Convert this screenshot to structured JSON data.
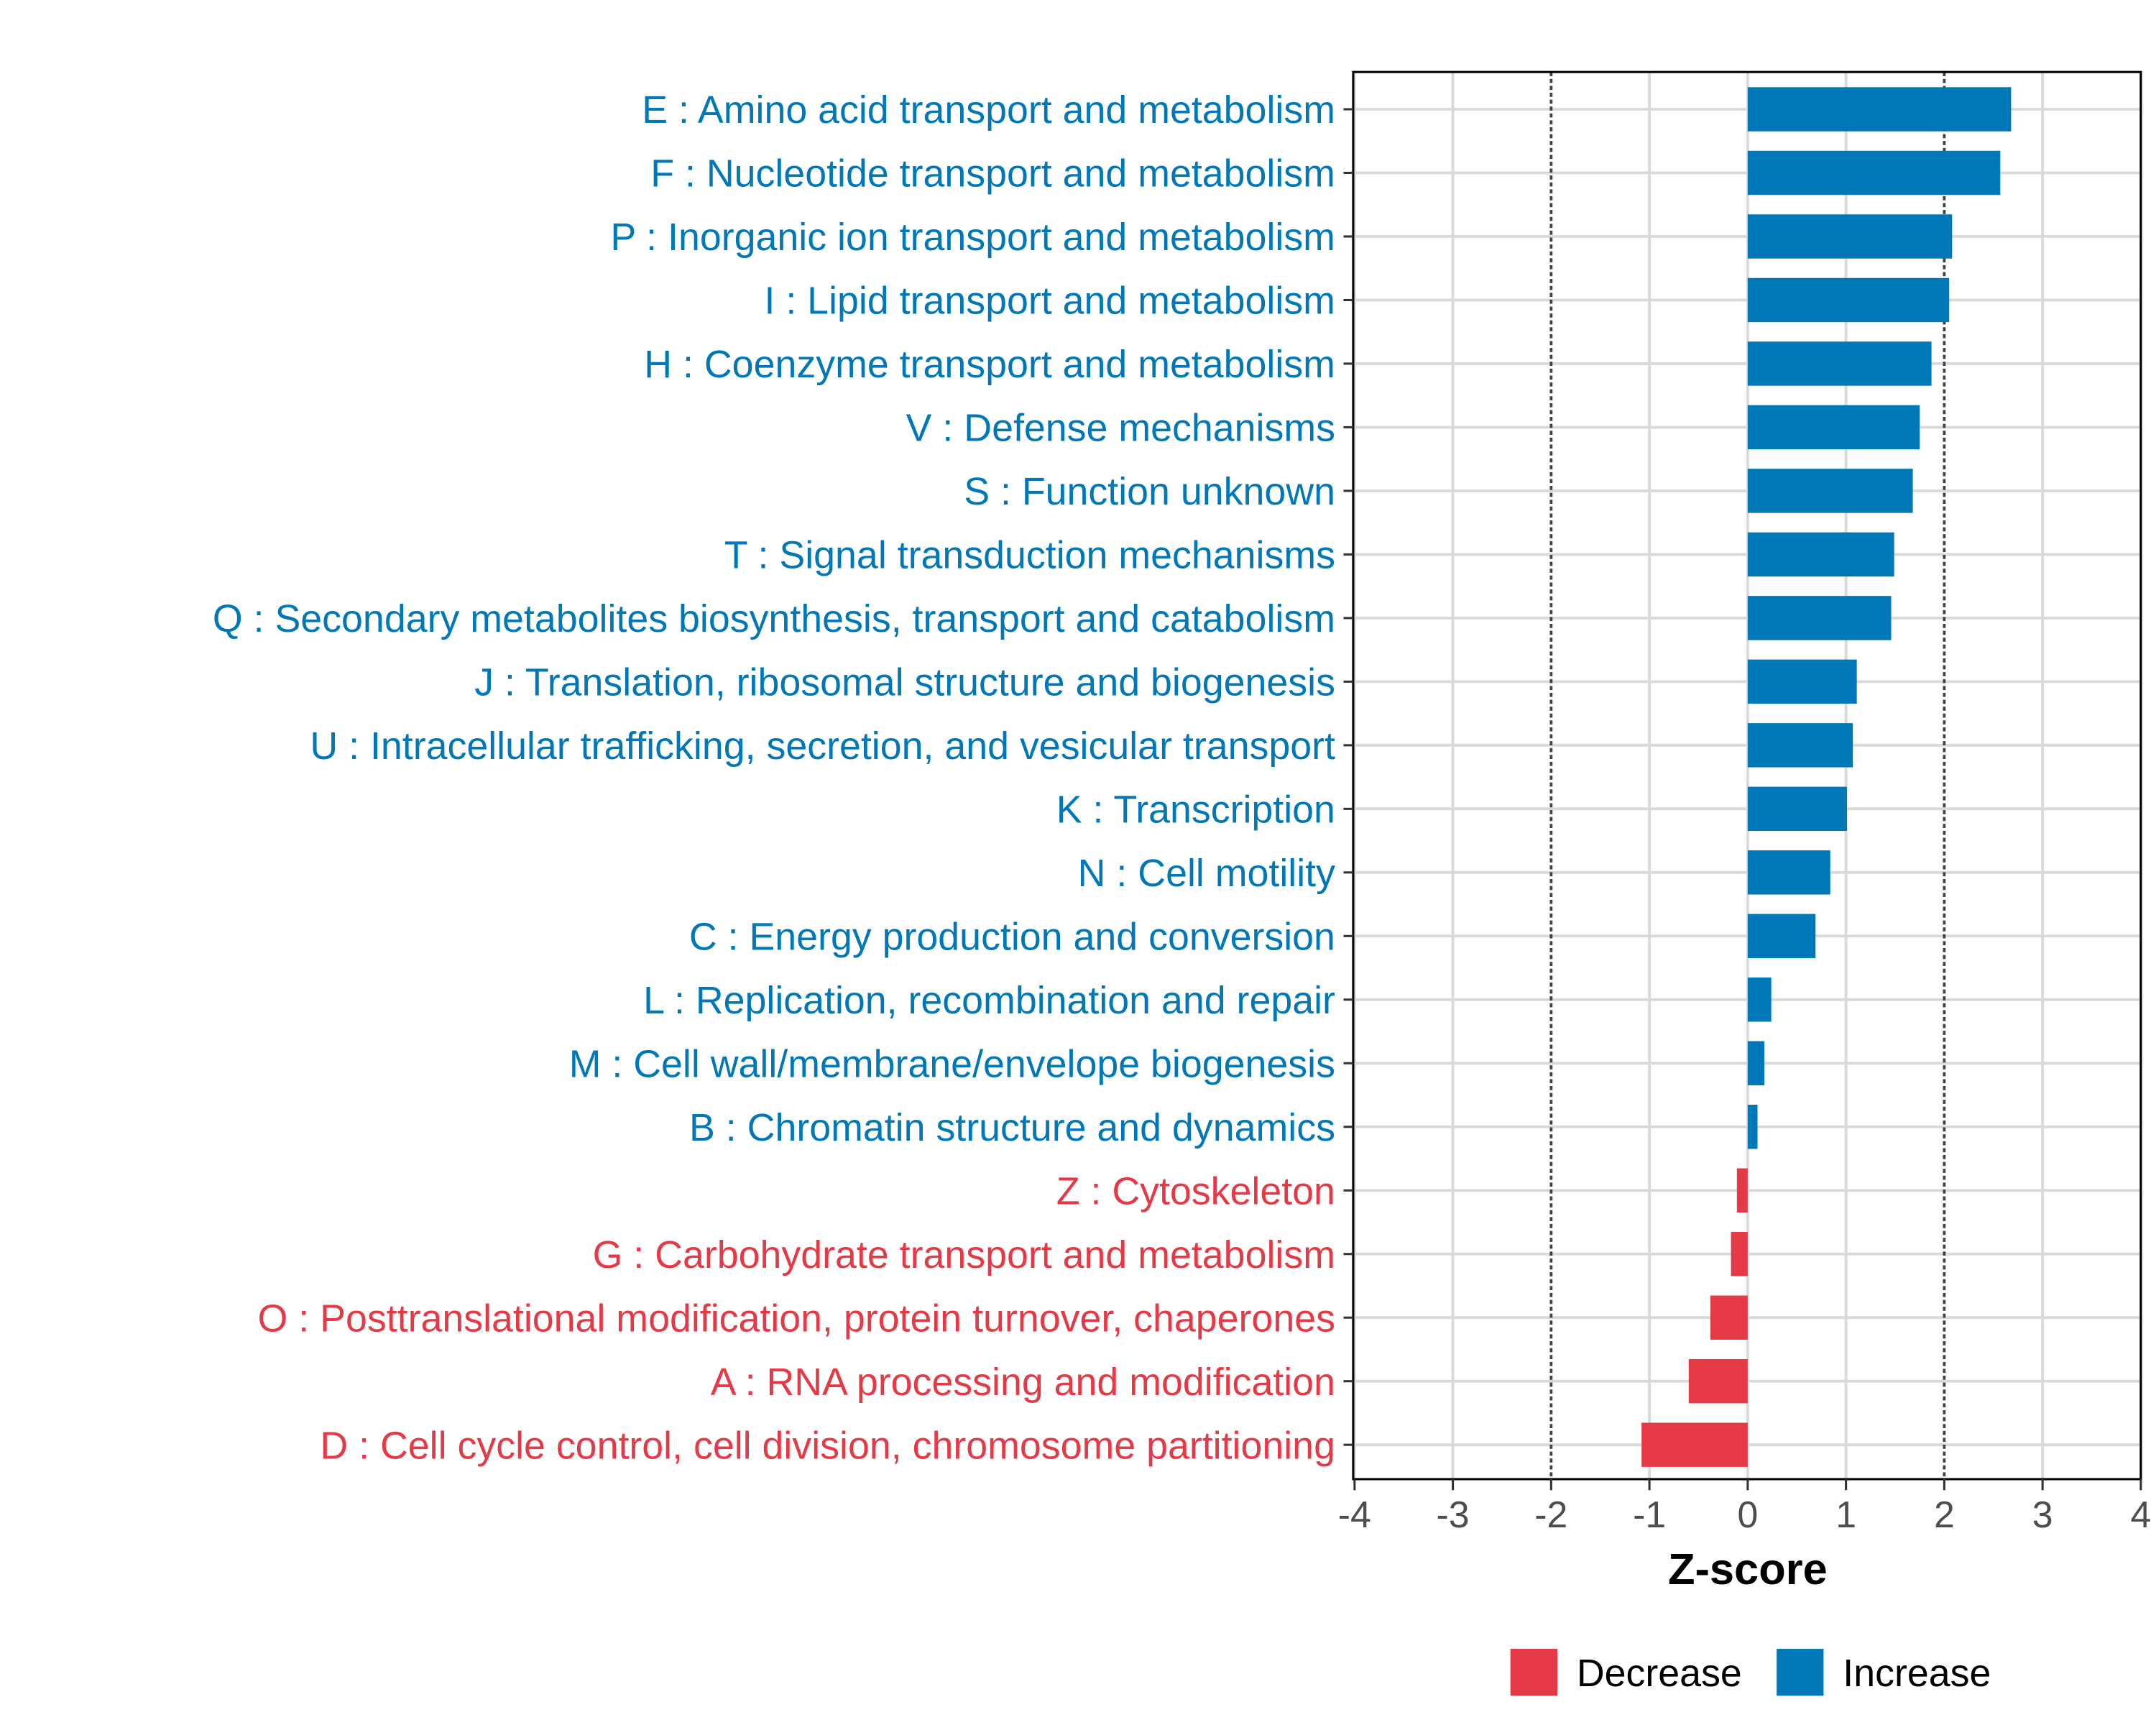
{
  "chart_data": {
    "type": "bar",
    "orientation": "horizontal",
    "categories": [
      "E : Amino acid transport and metabolism",
      "F : Nucleotide transport and metabolism",
      "P : Inorganic ion transport and metabolism",
      "I : Lipid transport and metabolism",
      "H : Coenzyme transport and metabolism",
      "V : Defense mechanisms",
      "S : Function unknown",
      "T : Signal transduction mechanisms",
      "Q : Secondary metabolites biosynthesis, transport and catabolism",
      "J : Translation, ribosomal structure and biogenesis",
      "U : Intracellular trafficking, secretion, and vesicular transport",
      "K : Transcription",
      "N : Cell motility",
      "C : Energy production and conversion",
      "L : Replication, recombination and repair",
      "M : Cell wall/membrane/envelope biogenesis",
      "B : Chromatin structure and dynamics",
      "Z : Cytoskeleton",
      "G : Carbohydrate transport and metabolism",
      "O : Posttranslational modification, protein turnover, chaperones",
      "A : RNA processing and modification",
      "D : Cell cycle control, cell division, chromosome partitioning"
    ],
    "values": [
      2.68,
      2.57,
      2.08,
      2.05,
      1.87,
      1.75,
      1.68,
      1.49,
      1.46,
      1.11,
      1.07,
      1.01,
      0.84,
      0.69,
      0.24,
      0.17,
      0.1,
      -0.11,
      -0.17,
      -0.38,
      -0.6,
      -1.08
    ],
    "xlabel": "Z-score",
    "xlim": [
      -4,
      4
    ],
    "xticks": [
      "-4",
      "-3",
      "-2",
      "-1",
      "0",
      "1",
      "2",
      "3",
      "4"
    ],
    "reference_lines": [
      -2,
      2
    ],
    "grid": true,
    "legend": {
      "placement": "bottom",
      "entries": [
        {
          "label": "Decrease",
          "color": "#e63946"
        },
        {
          "label": "Increase",
          "color": "#0077b6"
        }
      ]
    },
    "colors": {
      "decrease": "#e63946",
      "increase": "#0077b6"
    }
  }
}
